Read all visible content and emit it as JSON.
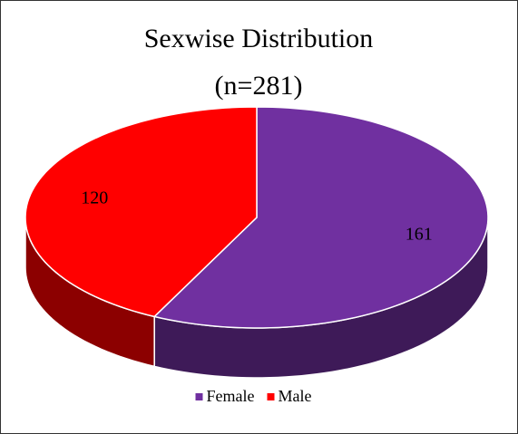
{
  "chart_data": {
    "type": "pie3d",
    "title": "Sexwise Distribution",
    "subtitle": "(n=281)",
    "categories": [
      "Female",
      "Male"
    ],
    "values": [
      161,
      120
    ],
    "colors": [
      "#7030a0",
      "#ff0000"
    ],
    "legend": "bottom"
  }
}
